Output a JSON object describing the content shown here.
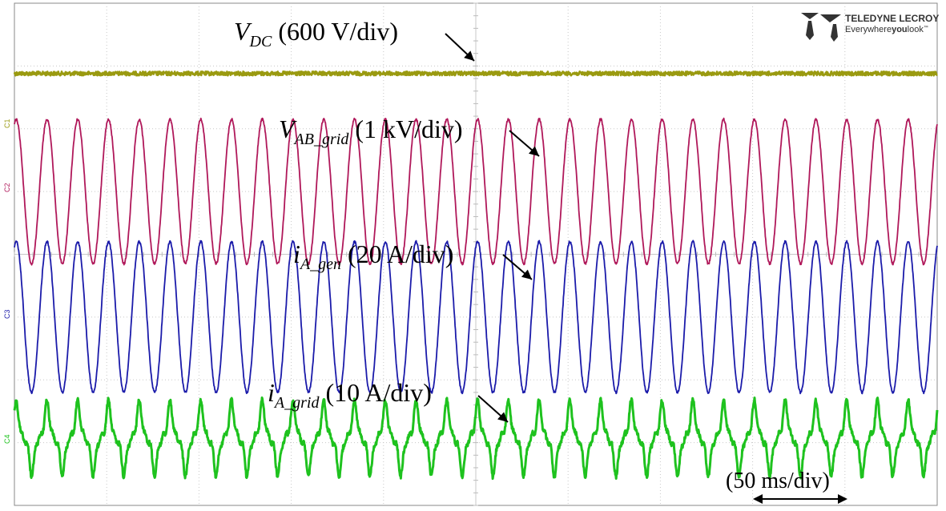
{
  "logo": {
    "brand": "TELEDYNE LECROY",
    "tagline_pre": "Everywhere",
    "tagline_bold": "you",
    "tagline_post": "look",
    "tm": "™"
  },
  "timebase_label": "(50 ms/div)",
  "channel_markers": [
    "C1",
    "C2",
    "C3",
    "C4"
  ],
  "chart_data": {
    "type": "line",
    "grid": true,
    "grid_divisions": {
      "horizontal": 10,
      "vertical": 8
    },
    "x_unit": "ms",
    "x_per_div": 50,
    "series": [
      {
        "symbol": "V",
        "sub": "DC",
        "scale": "(600 V/div)",
        "color": "#9a9a10",
        "waveform": "dc",
        "frequency_hz": 0,
        "offset_div": 2.88,
        "amplitude_div": 0
      },
      {
        "symbol": "V",
        "sub": "AB_grid",
        "scale": "(1 kV/div)",
        "color": "#b0185a",
        "waveform": "sine",
        "frequency_hz": 60,
        "offset_div": 1.0,
        "amplitude_div": 1.15
      },
      {
        "symbol": "i",
        "sub": "A_gen",
        "scale": "(20 A/div)",
        "color": "#1b1baa",
        "waveform": "sine",
        "frequency_hz": 60,
        "offset_div": -1.0,
        "amplitude_div": 1.2
      },
      {
        "symbol": "i",
        "sub": "A_grid",
        "scale": "(10 A/div)",
        "color": "#1ec21e",
        "waveform": "distorted-sine",
        "frequency_hz": 60,
        "offset_div": -2.93,
        "amplitude_div": 0.4
      }
    ]
  }
}
